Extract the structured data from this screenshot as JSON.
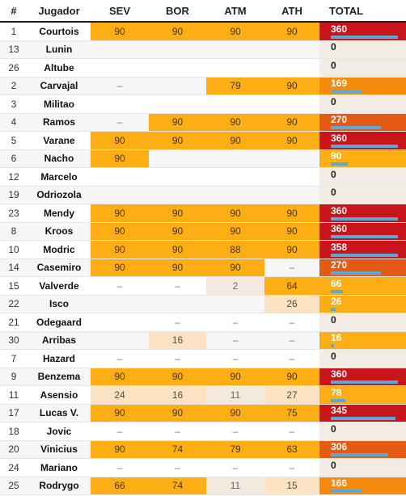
{
  "headers": {
    "num": "#",
    "player": "Jugador",
    "sev": "SEV",
    "bor": "BOR",
    "atm": "ATM",
    "ath": "ATH",
    "total": "TOTAL"
  },
  "colors": {
    "red": "#c8151b",
    "orange_red": "#e55b16",
    "orange": "#f58a0c",
    "amber": "#fcae14",
    "pale": "#fbe2c2",
    "bar": "#5aa8d8"
  },
  "max_total": 360,
  "rows": [
    {
      "num": "1",
      "name": "Courtois",
      "sev": "90",
      "bor": "90",
      "atm": "90",
      "ath": "90",
      "total": "360"
    },
    {
      "num": "13",
      "name": "Lunin",
      "sev": "",
      "bor": "",
      "atm": "",
      "ath": "",
      "total": "0"
    },
    {
      "num": "26",
      "name": "Altube",
      "sev": "",
      "bor": "",
      "atm": "",
      "ath": "",
      "total": "0"
    },
    {
      "num": "2",
      "name": "Carvajal",
      "sev": "–",
      "bor": "",
      "atm": "79",
      "ath": "90",
      "total": "169"
    },
    {
      "num": "3",
      "name": "Militao",
      "sev": "",
      "bor": "",
      "atm": "",
      "ath": "",
      "total": "0"
    },
    {
      "num": "4",
      "name": "Ramos",
      "sev": "–",
      "bor": "90",
      "atm": "90",
      "ath": "90",
      "total": "270"
    },
    {
      "num": "5",
      "name": "Varane",
      "sev": "90",
      "bor": "90",
      "atm": "90",
      "ath": "90",
      "total": "360"
    },
    {
      "num": "6",
      "name": "Nacho",
      "sev": "90",
      "bor": "",
      "atm": "",
      "ath": "",
      "total": "90"
    },
    {
      "num": "12",
      "name": "Marcelo",
      "sev": "",
      "bor": "",
      "atm": "",
      "ath": "",
      "total": "0"
    },
    {
      "num": "19",
      "name": "Odriozola",
      "sev": "",
      "bor": "",
      "atm": "",
      "ath": "",
      "total": "0"
    },
    {
      "num": "23",
      "name": "Mendy",
      "sev": "90",
      "bor": "90",
      "atm": "90",
      "ath": "90",
      "total": "360"
    },
    {
      "num": "8",
      "name": "Kroos",
      "sev": "90",
      "bor": "90",
      "atm": "90",
      "ath": "90",
      "total": "360"
    },
    {
      "num": "10",
      "name": "Modric",
      "sev": "90",
      "bor": "90",
      "atm": "88",
      "ath": "90",
      "total": "358"
    },
    {
      "num": "14",
      "name": "Casemiro",
      "sev": "90",
      "bor": "90",
      "atm": "90",
      "ath": "–",
      "total": "270"
    },
    {
      "num": "15",
      "name": "Valverde",
      "sev": "–",
      "bor": "–",
      "atm": "2",
      "ath": "64",
      "total": "66"
    },
    {
      "num": "22",
      "name": "Isco",
      "sev": "",
      "bor": "",
      "atm": "",
      "ath": "26",
      "total": "26"
    },
    {
      "num": "21",
      "name": "Odegaard",
      "sev": "",
      "bor": "–",
      "atm": "–",
      "ath": "–",
      "total": "0"
    },
    {
      "num": "30",
      "name": "Arribas",
      "sev": "",
      "bor": "16",
      "atm": "–",
      "ath": "–",
      "total": "16"
    },
    {
      "num": "7",
      "name": "Hazard",
      "sev": "–",
      "bor": "–",
      "atm": "–",
      "ath": "–",
      "total": "0"
    },
    {
      "num": "9",
      "name": "Benzema",
      "sev": "90",
      "bor": "90",
      "atm": "90",
      "ath": "90",
      "total": "360"
    },
    {
      "num": "11",
      "name": "Asensio",
      "sev": "24",
      "bor": "16",
      "atm": "11",
      "ath": "27",
      "total": "78"
    },
    {
      "num": "17",
      "name": "Lucas V.",
      "sev": "90",
      "bor": "90",
      "atm": "90",
      "ath": "75",
      "total": "345"
    },
    {
      "num": "18",
      "name": "Jovic",
      "sev": "–",
      "bor": "–",
      "atm": "–",
      "ath": "–",
      "total": "0"
    },
    {
      "num": "20",
      "name": "Vinicius",
      "sev": "90",
      "bor": "74",
      "atm": "79",
      "ath": "63",
      "total": "306"
    },
    {
      "num": "24",
      "name": "Mariano",
      "sev": "–",
      "bor": "–",
      "atm": "–",
      "ath": "–",
      "total": "0"
    },
    {
      "num": "25",
      "name": "Rodrygo",
      "sev": "66",
      "bor": "74",
      "atm": "11",
      "ath": "15",
      "total": "166"
    }
  ]
}
